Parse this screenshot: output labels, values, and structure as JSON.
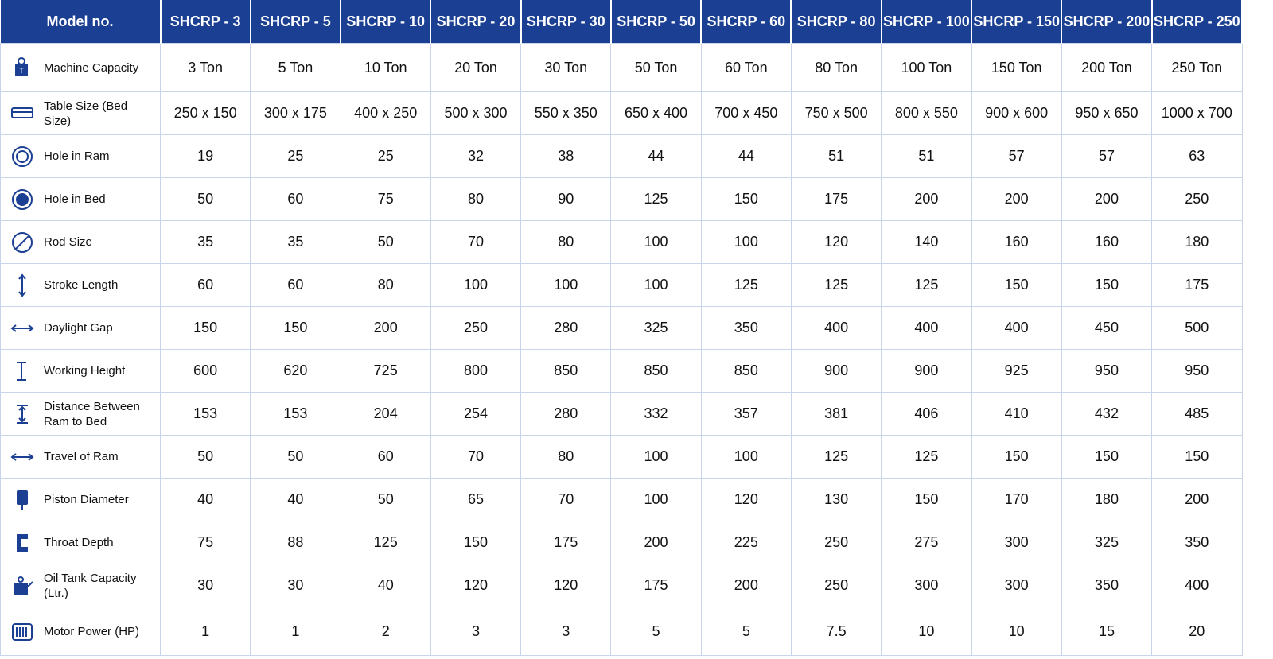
{
  "table": {
    "header": [
      "Model no.",
      "SHCRP - 3",
      "SHCRP - 5",
      "SHCRP - 10",
      "SHCRP - 20",
      "SHCRP - 30",
      "SHCRP - 50",
      "SHCRP - 60",
      "SHCRP - 80",
      "SHCRP - 100",
      "SHCRP - 150",
      "SHCRP - 200",
      "SHCRP - 250"
    ],
    "rows": [
      [
        "Machine Capacity",
        "3 Ton",
        "5 Ton",
        "10 Ton",
        "20 Ton",
        "30 Ton",
        "50 Ton",
        "60 Ton",
        "80 Ton",
        "100 Ton",
        "150 Ton",
        "200 Ton",
        "250 Ton"
      ],
      [
        "Table Size (Bed Size)",
        "250 x 150",
        "300 x 175",
        "400 x 250",
        "500 x 300",
        "550 x 350",
        "650 x 400",
        "700 x 450",
        "750 x 500",
        "800 x 550",
        "900 x 600",
        "950 x 650",
        "1000 x 700"
      ],
      [
        "Hole in Ram",
        19,
        25,
        25,
        32,
        38,
        44,
        44,
        51,
        51,
        57,
        57,
        63
      ],
      [
        "Hole in Bed",
        50,
        60,
        75,
        80,
        90,
        125,
        150,
        175,
        200,
        200,
        200,
        250
      ],
      [
        "Rod Size",
        35,
        35,
        50,
        70,
        80,
        100,
        100,
        120,
        140,
        160,
        160,
        180
      ],
      [
        "Stroke Length",
        60,
        60,
        80,
        100,
        100,
        100,
        125,
        125,
        125,
        150,
        150,
        175
      ],
      [
        "Daylight Gap",
        150,
        150,
        200,
        250,
        280,
        325,
        350,
        400,
        400,
        400,
        450,
        500
      ],
      [
        "Working Height",
        600,
        620,
        725,
        800,
        850,
        850,
        850,
        900,
        900,
        925,
        950,
        950
      ],
      [
        "Distance Between Ram to Bed",
        153,
        153,
        204,
        254,
        280,
        332,
        357,
        381,
        406,
        410,
        432,
        485
      ],
      [
        "Travel of Ram",
        50,
        50,
        60,
        70,
        80,
        100,
        100,
        125,
        125,
        150,
        150,
        150
      ],
      [
        "Piston Diameter",
        40,
        40,
        50,
        65,
        70,
        100,
        120,
        130,
        150,
        170,
        180,
        200
      ],
      [
        "Throat Depth",
        75,
        88,
        125,
        150,
        175,
        200,
        225,
        250,
        275,
        300,
        325,
        350
      ],
      [
        "Oil Tank Capacity (Ltr.)",
        30,
        30,
        40,
        120,
        120,
        175,
        200,
        250,
        300,
        300,
        350,
        400
      ],
      [
        "Motor Power (HP)",
        1,
        1,
        2,
        3,
        3,
        5,
        5,
        7.5,
        10,
        10,
        15,
        20
      ]
    ]
  }
}
